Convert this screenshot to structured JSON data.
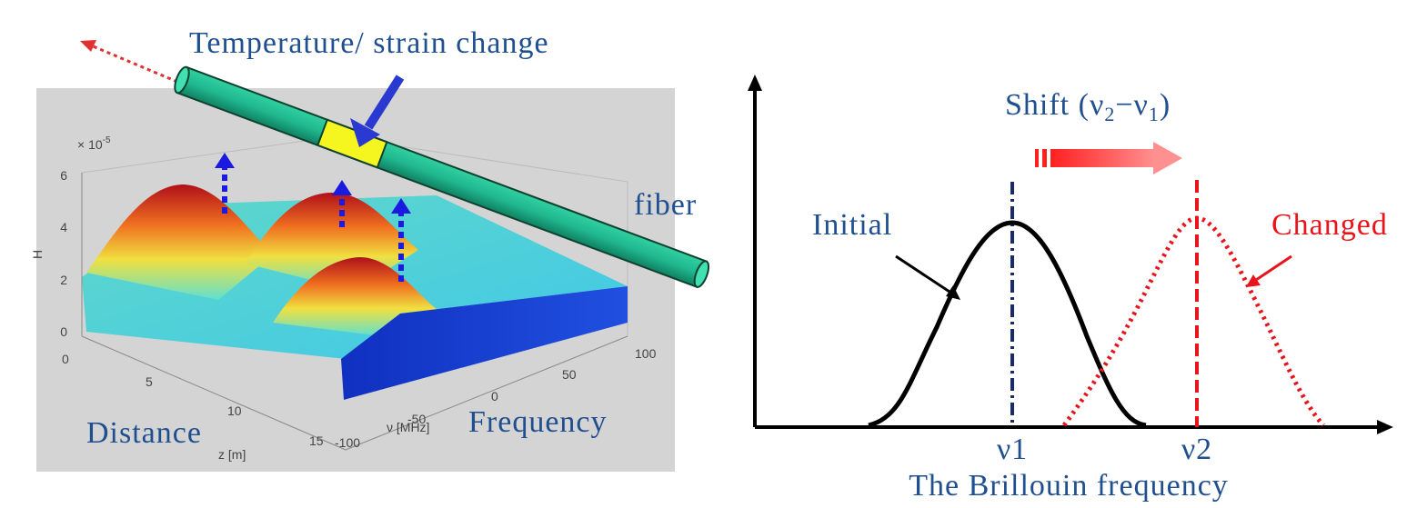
{
  "left_panel": {
    "title": "Temperature/ strain change",
    "fiber_label": "fiber",
    "x_axis_label": "Distance",
    "y_axis_label": "Frequency",
    "plot": {
      "scale_base": "× 10",
      "scale_exponent": "-5",
      "h_label": "H",
      "h_ticks": [
        "0",
        "2",
        "4",
        "6"
      ],
      "z_label": "z [m]",
      "z_ticks": [
        "0",
        "5",
        "10",
        "15"
      ],
      "nu_label": "ν [MHz]",
      "nu_ticks": [
        "-100",
        "-50",
        "0",
        "50",
        "100"
      ]
    }
  },
  "right_panel": {
    "shift_label": {
      "prefix": "Shift (ν",
      "sub1": "2",
      "mid": "−ν",
      "sub2": "1",
      "suffix": ")"
    },
    "initial_label": "Initial",
    "changed_label": "Changed",
    "nu1": "ν1",
    "nu2": "ν2",
    "x_axis_label": "The Brillouin frequency"
  }
}
